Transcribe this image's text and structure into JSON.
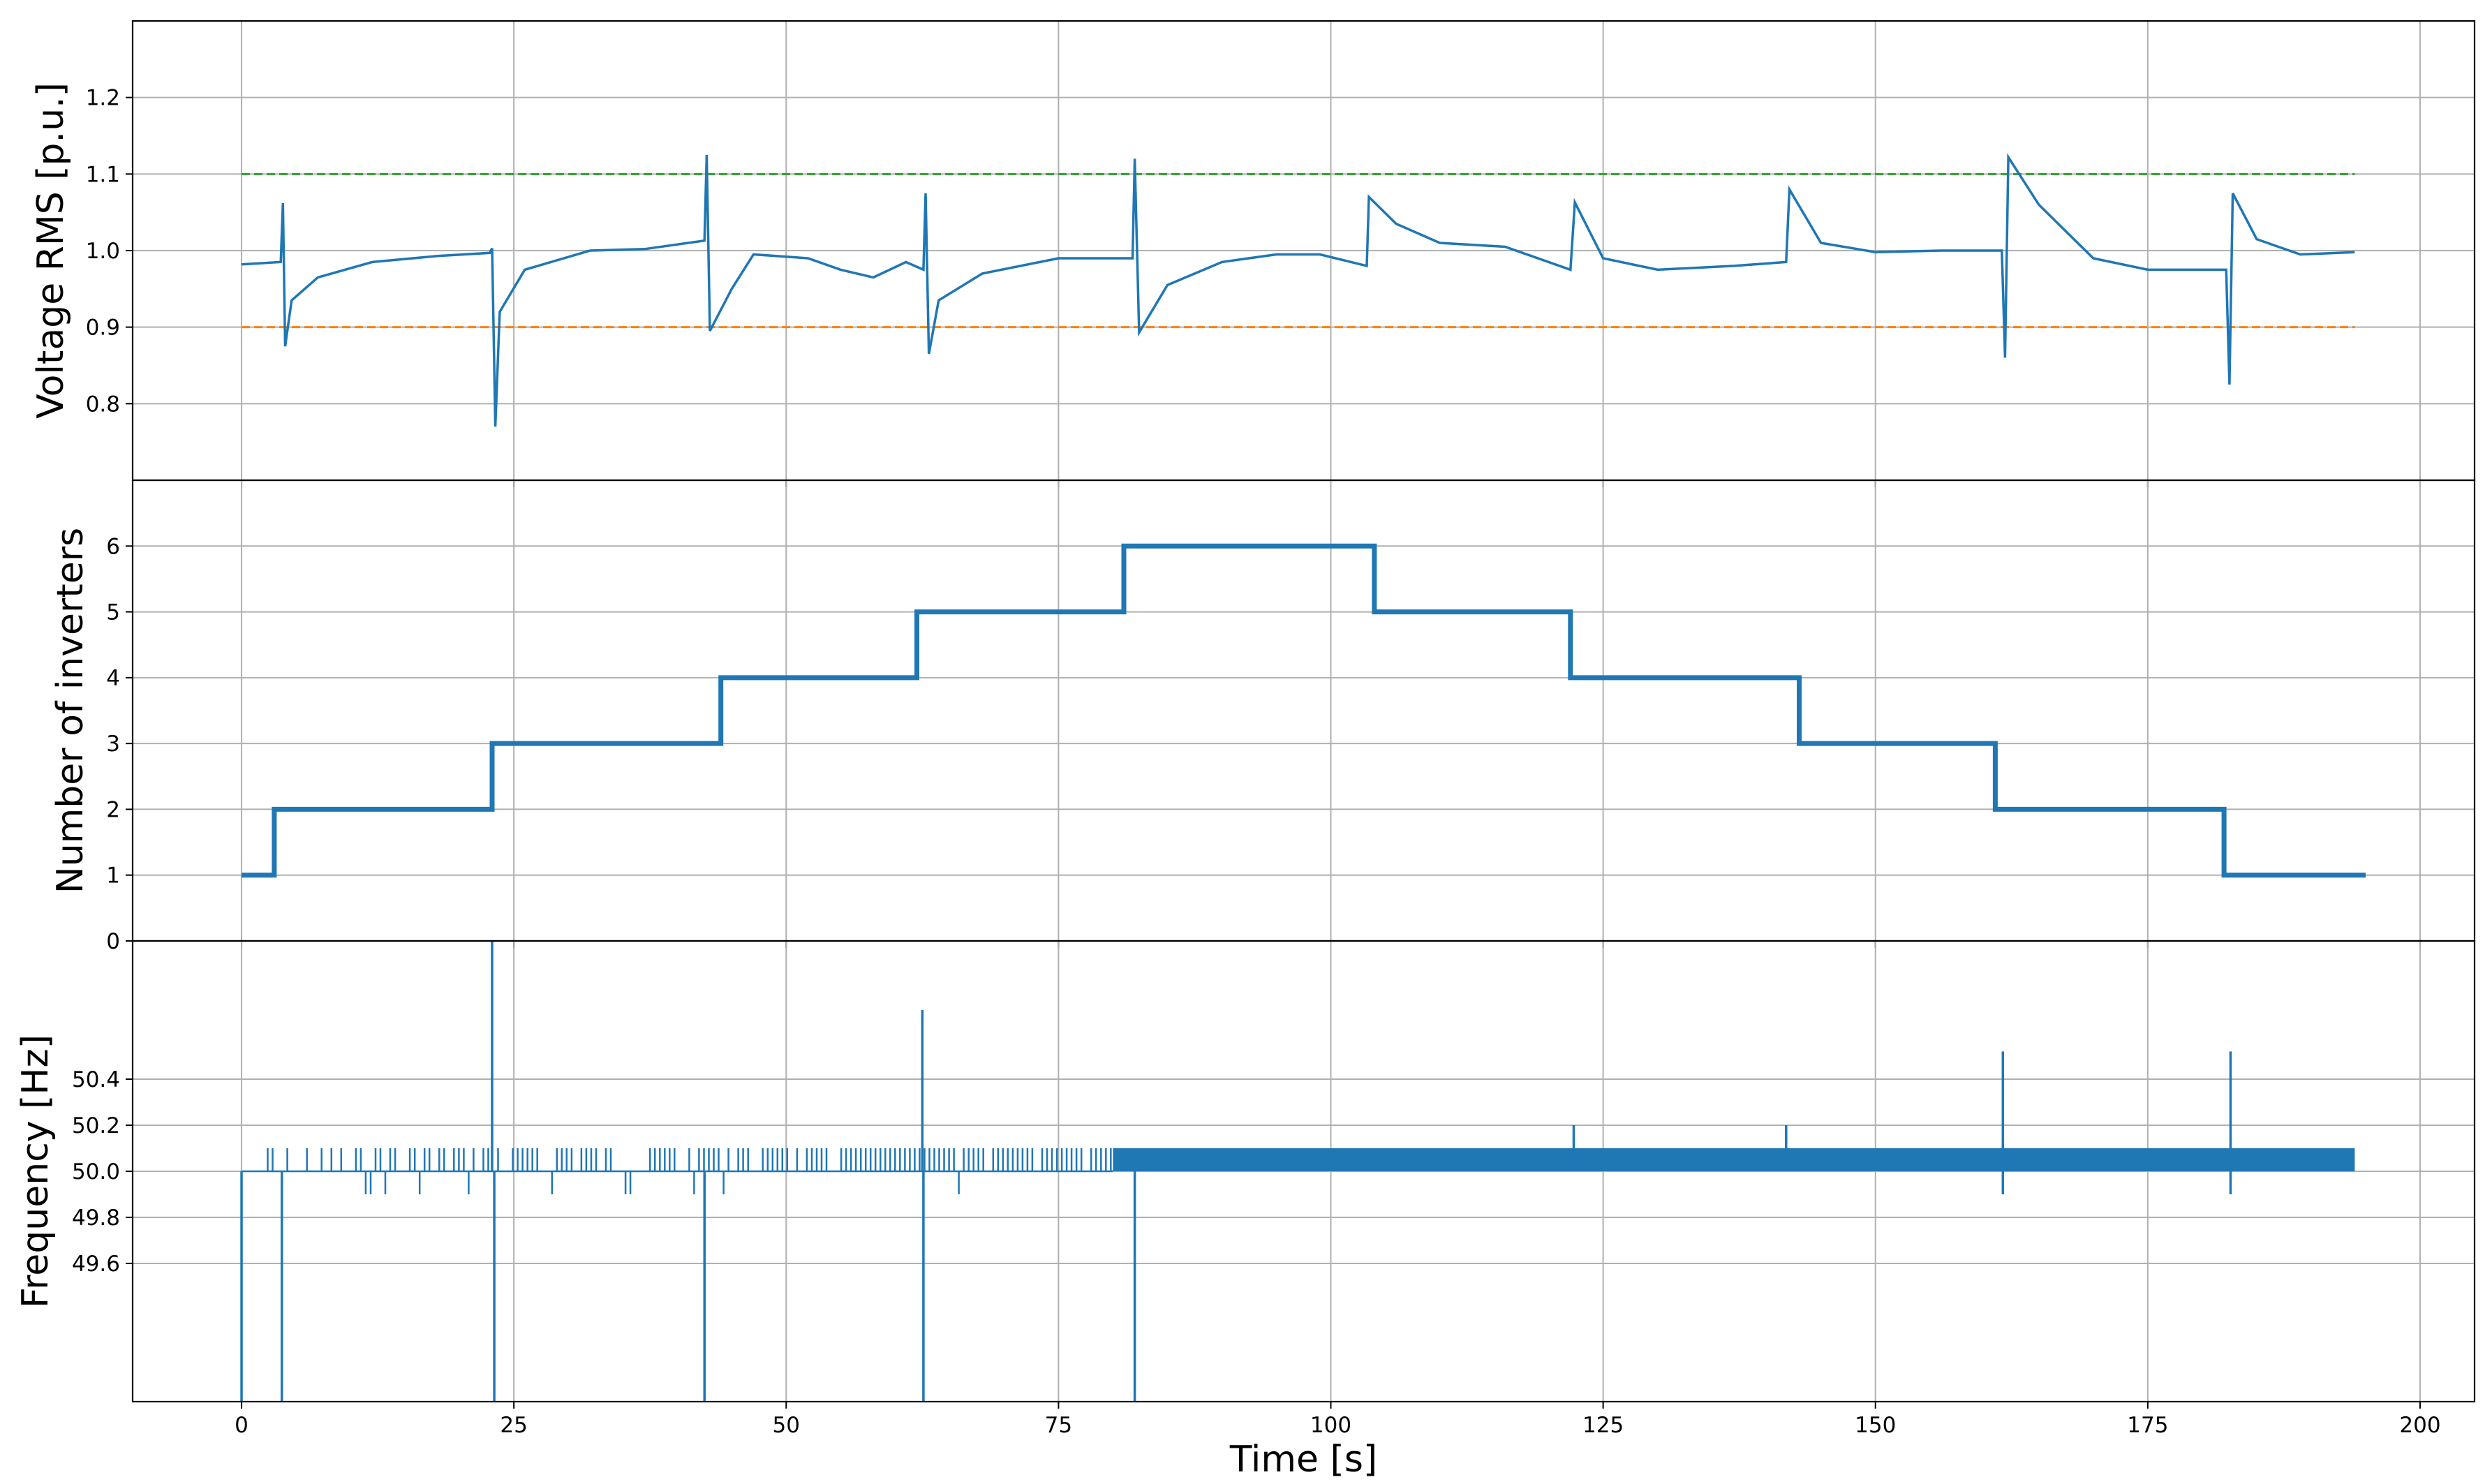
{
  "chart_data": [
    {
      "type": "line",
      "panel": "top",
      "ylabel": "Voltage RMS [p.u.]",
      "ylim": [
        0.7,
        1.3
      ],
      "yticks": [
        0.8,
        0.9,
        1.0,
        1.1,
        1.2
      ],
      "ytick_labels": [
        "0.8",
        "0.9",
        "1.0",
        "1.1",
        "1.2"
      ],
      "grid": true,
      "series": [
        {
          "color": "#1f77b4",
          "points": [
            [
              0,
              0.982
            ],
            [
              3.6,
              0.985
            ],
            [
              3.8,
              1.062
            ],
            [
              4.0,
              0.875
            ],
            [
              4.6,
              0.935
            ],
            [
              7,
              0.965
            ],
            [
              12,
              0.985
            ],
            [
              18,
              0.993
            ],
            [
              22.8,
              0.997
            ],
            [
              23.0,
              1.003
            ],
            [
              23.3,
              0.77
            ],
            [
              23.7,
              0.92
            ],
            [
              26,
              0.975
            ],
            [
              32,
              1.0
            ],
            [
              37,
              1.002
            ],
            [
              42.5,
              1.013
            ],
            [
              42.7,
              1.125
            ],
            [
              43.0,
              0.895
            ],
            [
              45,
              0.95
            ],
            [
              47,
              0.995
            ],
            [
              52,
              0.99
            ],
            [
              55,
              0.975
            ],
            [
              58,
              0.965
            ],
            [
              61,
              0.985
            ],
            [
              62.6,
              0.975
            ],
            [
              62.8,
              1.075
            ],
            [
              63.1,
              0.865
            ],
            [
              64,
              0.935
            ],
            [
              68,
              0.97
            ],
            [
              75,
              0.99
            ],
            [
              81.8,
              0.99
            ],
            [
              82.0,
              1.12
            ],
            [
              82.4,
              0.893
            ],
            [
              85,
              0.955
            ],
            [
              90,
              0.985
            ],
            [
              95,
              0.995
            ],
            [
              99,
              0.995
            ],
            [
              103.3,
              0.98
            ],
            [
              103.5,
              1.07
            ],
            [
              106,
              1.035
            ],
            [
              110,
              1.01
            ],
            [
              116,
              1.005
            ],
            [
              122,
              0.975
            ],
            [
              122.4,
              1.063
            ],
            [
              125,
              0.99
            ],
            [
              130,
              0.975
            ],
            [
              137,
              0.98
            ],
            [
              141.8,
              0.985
            ],
            [
              142.1,
              1.08
            ],
            [
              145,
              1.01
            ],
            [
              150,
              0.998
            ],
            [
              156,
              1.0
            ],
            [
              161.6,
              1.0
            ],
            [
              161.9,
              0.86
            ],
            [
              162.2,
              1.122
            ],
            [
              165,
              1.06
            ],
            [
              170,
              0.99
            ],
            [
              175,
              0.975
            ],
            [
              182.2,
              0.975
            ],
            [
              182.5,
              0.825
            ],
            [
              182.8,
              1.075
            ],
            [
              185,
              1.015
            ],
            [
              189,
              0.995
            ],
            [
              194,
              0.998
            ]
          ]
        }
      ],
      "reference_lines": [
        {
          "y": 1.1,
          "x": [
            0,
            194
          ],
          "color": "#2ca02c",
          "style": "dashed"
        },
        {
          "y": 0.9,
          "x": [
            0,
            194
          ],
          "color": "#ff7f0e",
          "style": "dashed"
        }
      ]
    },
    {
      "type": "line",
      "panel": "middle",
      "ylabel": "Number of inverters",
      "ylim": [
        0,
        7
      ],
      "yticks": [
        0,
        1,
        2,
        3,
        4,
        5,
        6
      ],
      "ytick_labels": [
        "0",
        "1",
        "2",
        "3",
        "4",
        "5",
        "6"
      ],
      "grid": true,
      "series": [
        {
          "color": "#1f77b4",
          "step": true,
          "points": [
            [
              0,
              1
            ],
            [
              3,
              1
            ],
            [
              3,
              2
            ],
            [
              23,
              2
            ],
            [
              23,
              3
            ],
            [
              44,
              3
            ],
            [
              44,
              4
            ],
            [
              62,
              4
            ],
            [
              62,
              5
            ],
            [
              81,
              5
            ],
            [
              81,
              6
            ],
            [
              104,
              6
            ],
            [
              104,
              5
            ],
            [
              122,
              5
            ],
            [
              122,
              4
            ],
            [
              143,
              4
            ],
            [
              143,
              3
            ],
            [
              161,
              3
            ],
            [
              161,
              2
            ],
            [
              182,
              2
            ],
            [
              182,
              1
            ],
            [
              195,
              1
            ]
          ]
        }
      ]
    },
    {
      "type": "line",
      "panel": "bottom",
      "xlabel": "Time [s]",
      "ylabel": "Frequency [Hz]",
      "ylim": [
        49.0,
        51.0
      ],
      "yticks": [
        49.6,
        49.8,
        50.0,
        50.2,
        50.4
      ],
      "ytick_labels": [
        "49.6",
        "49.8",
        "50.0",
        "50.2",
        "50.4"
      ],
      "xlim": [
        -10,
        205
      ],
      "xticks": [
        0,
        25,
        50,
        75,
        100,
        125,
        150,
        175,
        200
      ],
      "xtick_labels": [
        "0",
        "25",
        "50",
        "75",
        "100",
        "125",
        "150",
        "175",
        "200"
      ],
      "grid": true,
      "series": [
        {
          "color": "#1f77b4",
          "band": {
            "x": [
              80,
              194
            ],
            "y": [
              50.0,
              50.1
            ]
          },
          "dense_flicker": {
            "x": [
              0,
              80
            ],
            "y_base": 50.0,
            "y_up": 50.1,
            "y_down": 49.9
          },
          "spikes": [
            [
              0,
              49.0
            ],
            [
              3.7,
              49.0
            ],
            [
              23,
              51.0
            ],
            [
              23.2,
              49.0
            ],
            [
              42.5,
              49.0
            ],
            [
              62.5,
              50.7
            ],
            [
              62.6,
              49.0
            ],
            [
              82,
              49.0
            ],
            [
              122.3,
              50.2
            ],
            [
              141.8,
              50.2
            ],
            [
              161.7,
              50.52
            ],
            [
              161.7,
              49.9
            ],
            [
              182.6,
              50.52
            ],
            [
              182.6,
              49.9
            ]
          ]
        }
      ]
    }
  ]
}
